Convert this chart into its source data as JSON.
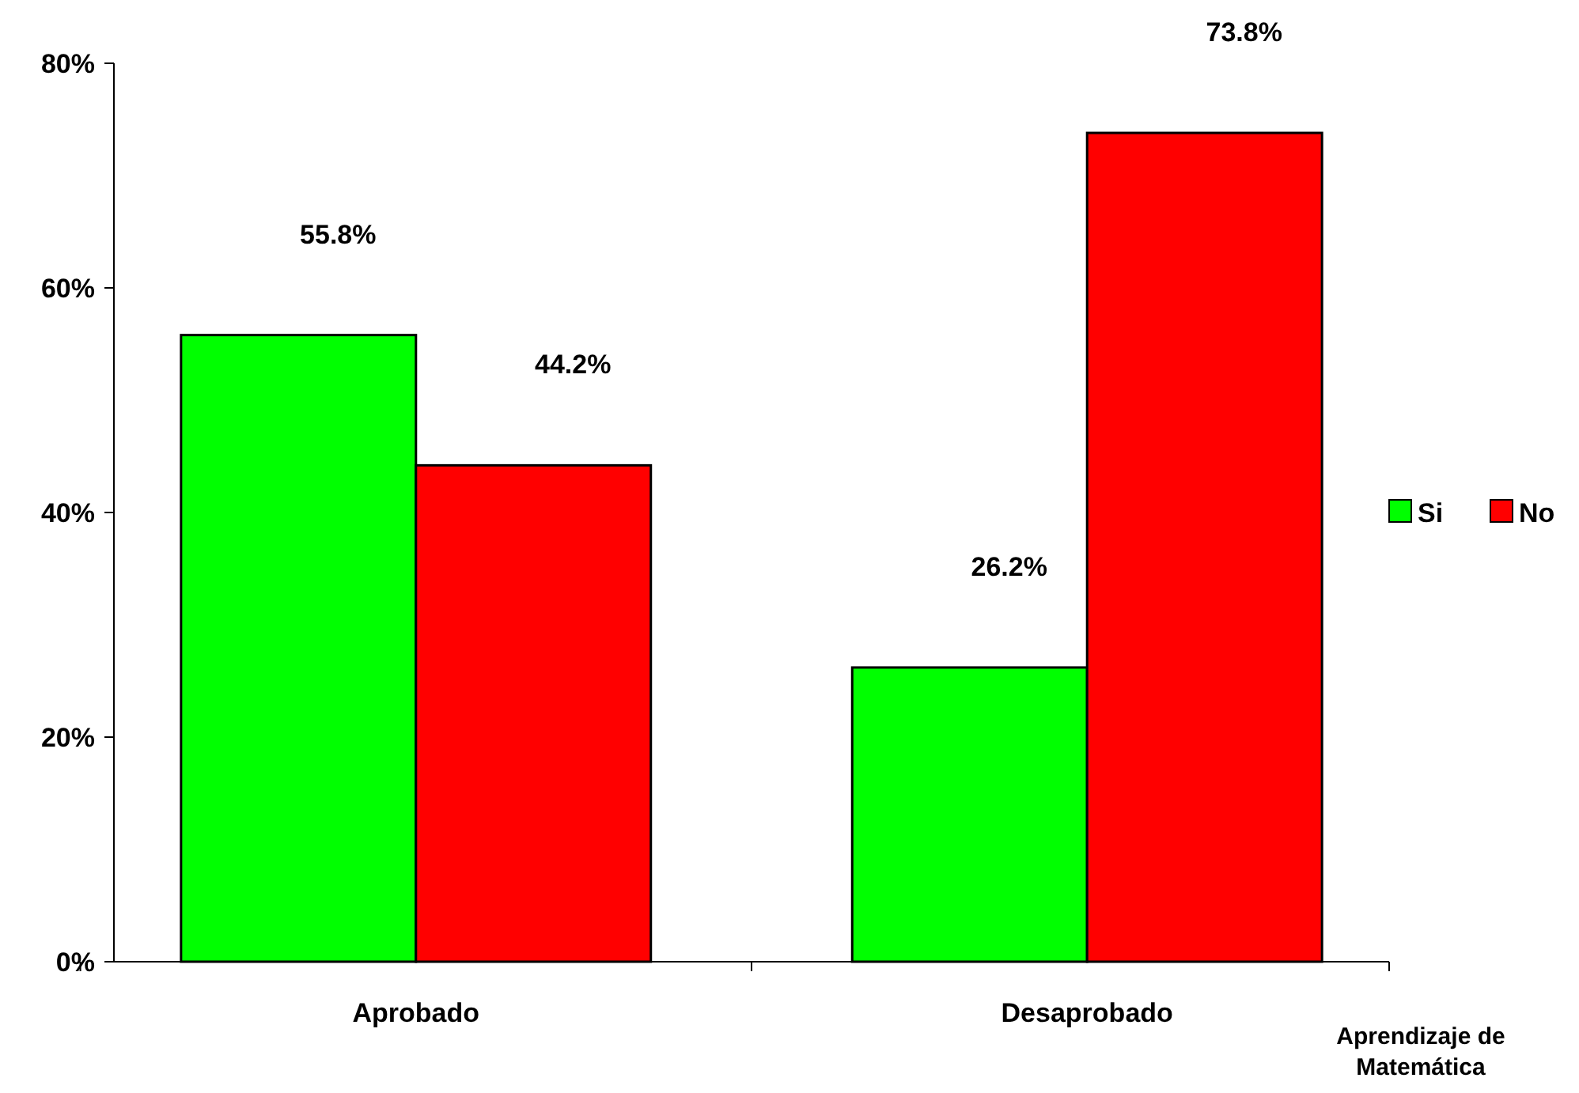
{
  "chart_data": {
    "type": "bar",
    "xlabel": "Aprendizaje de Matemática",
    "categories": [
      "Aprobado",
      "Desaprobado"
    ],
    "series": [
      {
        "name": "Si",
        "color": "#00ff00",
        "values": [
          55.8,
          26.2
        ],
        "value_labels": [
          "55.8%",
          "26.2%"
        ]
      },
      {
        "name": "No",
        "color": "#ff0000",
        "values": [
          44.2,
          73.8
        ],
        "value_labels": [
          "44.2%",
          "73.8%"
        ]
      }
    ],
    "ylim": [
      0,
      80
    ],
    "yticks": [
      {
        "value": 0,
        "label": "0%"
      },
      {
        "value": 20,
        "label": "20%"
      },
      {
        "value": 40,
        "label": "40%"
      },
      {
        "value": 60,
        "label": "60%"
      },
      {
        "value": 80,
        "label": "80%"
      }
    ],
    "legend": "right",
    "grid": false
  }
}
